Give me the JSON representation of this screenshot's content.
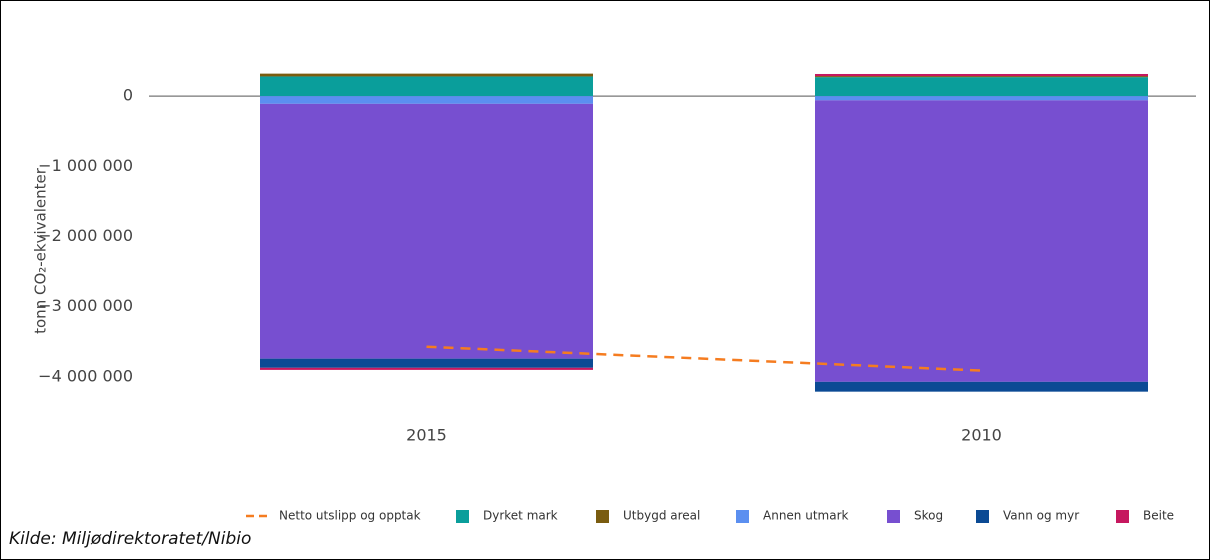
{
  "chart_data": {
    "type": "stacked_bar",
    "y_label": "tonn CO₂-ekvivalenter",
    "source": "Kilde: Miljødirektoratet/Nibio",
    "categories": [
      "2015",
      "2010"
    ],
    "series": [
      {
        "name": "Dyrket mark",
        "color": "#0a9e9b",
        "values": [
          280000,
          270000
        ]
      },
      {
        "name": "Utbygd areal",
        "color": "#7a5c10",
        "values": [
          40000,
          15000
        ]
      },
      {
        "name": "Annen utmark",
        "color": "#5b8ff0",
        "values": [
          -110000,
          -60000
        ]
      },
      {
        "name": "Skog",
        "color": "#774fd0",
        "values": [
          -3630000,
          -4010000
        ]
      },
      {
        "name": "Vann og myr",
        "color": "#0b4a94",
        "values": [
          -130000,
          -140000
        ]
      },
      {
        "name": "Beite",
        "color": "#c6185f",
        "values": [
          -30000,
          30000
        ]
      }
    ],
    "line": {
      "name": "Netto utslipp og opptak",
      "color": "#f57c20",
      "values": [
        -3570000,
        -3910000
      ]
    },
    "ylim": [
      -4400000,
      500000
    ],
    "yticks": [
      0,
      {
        "value": -1000000,
        "label": "−1 000 000"
      },
      {
        "value": -2000000,
        "label": "−2 000 000"
      },
      {
        "value": -3000000,
        "label": "−3 000 000"
      },
      {
        "value": -4000000,
        "label": "−4 000 000"
      }
    ],
    "grid": false
  }
}
